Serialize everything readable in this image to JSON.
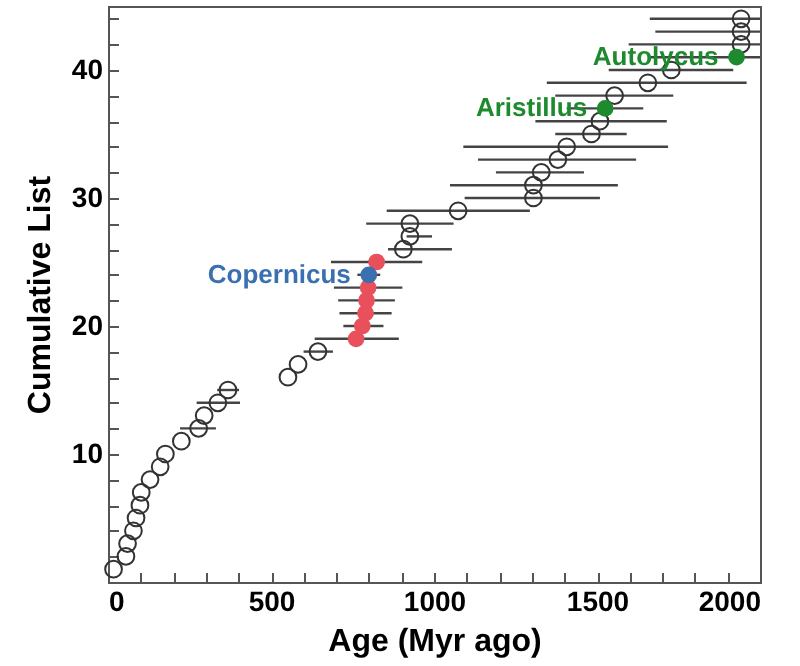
{
  "chart_data": {
    "type": "scatter",
    "xlabel": "Age (Myr ago)",
    "ylabel": "Cumulative List",
    "marker": "circle",
    "grid": false,
    "xlim": [
      0,
      2000
    ],
    "ylim": [
      0,
      45
    ],
    "xticks": [
      0,
      {
        "value": 100,
        "label": null
      },
      {
        "value": 200,
        "label": null
      },
      {
        "value": 300,
        "label": null
      },
      {
        "value": 400,
        "label": null
      },
      500,
      {
        "value": 600,
        "label": null
      },
      {
        "value": 700,
        "label": null
      },
      {
        "value": 800,
        "label": null
      },
      {
        "value": 900,
        "label": null
      },
      1000,
      {
        "value": 1100,
        "label": null
      },
      {
        "value": 1200,
        "label": null
      },
      {
        "value": 1300,
        "label": null
      },
      {
        "value": 1400,
        "label": null
      },
      1500,
      {
        "value": 1600,
        "label": null
      },
      {
        "value": 1700,
        "label": null
      },
      {
        "value": 1800,
        "label": null
      },
      {
        "value": 1900,
        "label": null
      },
      2000
    ],
    "yticks": [
      {
        "value": 2,
        "label": null
      },
      {
        "value": 4,
        "label": null
      },
      {
        "value": 6,
        "label": null
      },
      {
        "value": 8,
        "label": null
      },
      10,
      {
        "value": 12,
        "label": null
      },
      {
        "value": 14,
        "label": null
      },
      {
        "value": 16,
        "label": null
      },
      {
        "value": 18,
        "label": null
      },
      20,
      {
        "value": 22,
        "label": null
      },
      {
        "value": 24,
        "label": null
      },
      {
        "value": 26,
        "label": null
      },
      {
        "value": 28,
        "label": null
      },
      30,
      {
        "value": 32,
        "label": null
      },
      {
        "value": 34,
        "label": null
      },
      {
        "value": 36,
        "label": null
      },
      {
        "value": 38,
        "label": null
      },
      40,
      {
        "value": 42,
        "label": null
      },
      {
        "value": 44,
        "label": null
      }
    ],
    "series": [
      {
        "color": "#333333",
        "x": [
          17,
          55,
          60,
          78,
          86,
          98,
          102,
          129,
          160,
          176,
          225,
          278,
          295,
          337,
          368,
          552,
          583,
          644,
          906,
          926,
          926,
          1074,
          1305,
          1305,
          1329,
          1380,
          1407,
          1483,
          1509,
          1554,
          1656,
          1728,
          1942,
          1942,
          1942
        ],
        "values": [
          1,
          2,
          3,
          4,
          5,
          6,
          7,
          8,
          9,
          10,
          11,
          12,
          13,
          14,
          15,
          16,
          17,
          18,
          26,
          27,
          28,
          29,
          30,
          31,
          32,
          33,
          34,
          35,
          36,
          38,
          39,
          40,
          42,
          43,
          44
        ],
        "xerrors": [
          null,
          null,
          null,
          null,
          null,
          null,
          null,
          null,
          null,
          null,
          null,
          [
            221,
            331
          ],
          null,
          [
            272,
            405
          ],
          [
            335,
            402
          ],
          null,
          null,
          [
            600,
            690
          ],
          [
            859,
            1055
          ],
          [
            916,
            994
          ],
          [
            792,
            1060
          ],
          [
            855,
            1294
          ],
          [
            1094,
            1509
          ],
          [
            1049,
            1564
          ],
          [
            1190,
            1460
          ],
          [
            1135,
            1620
          ],
          [
            1090,
            1718
          ],
          [
            1372,
            1591
          ],
          [
            1311,
            1714
          ],
          [
            1372,
            1734
          ],
          [
            1346,
            1959
          ],
          [
            1536,
            1918
          ],
          [
            1597,
            2000
          ],
          [
            1679,
            2000
          ],
          [
            1662,
            2000
          ]
        ]
      },
      {
        "color": "#e8505b",
        "x": [
          761,
          780,
          790,
          793,
          798,
          824
        ],
        "values": [
          19,
          20,
          21,
          22,
          23,
          25
        ],
        "xerrors": [
          [
            634,
            892
          ],
          [
            722,
            845
          ],
          [
            710,
            870
          ],
          [
            706,
            880
          ],
          [
            693,
            903
          ],
          [
            684,
            964
          ]
        ]
      },
      {
        "name": "Copernicus",
        "color": "#3a6fb0",
        "x": [
          800
        ],
        "values": [
          24
        ],
        "xerrors": [
          [
            765,
            835
          ]
        ]
      },
      {
        "name": "Aristillus",
        "color": "#1e8a2e",
        "x": [
          1525
        ],
        "values": [
          37
        ],
        "xerrors": [
          [
            1407,
            1642
          ]
        ]
      },
      {
        "name": "Autolycus",
        "color": "#1e8a2e",
        "x": [
          1928
        ],
        "values": [
          41
        ],
        "xerrors": [
          [
            1662,
            2000
          ]
        ]
      }
    ]
  }
}
